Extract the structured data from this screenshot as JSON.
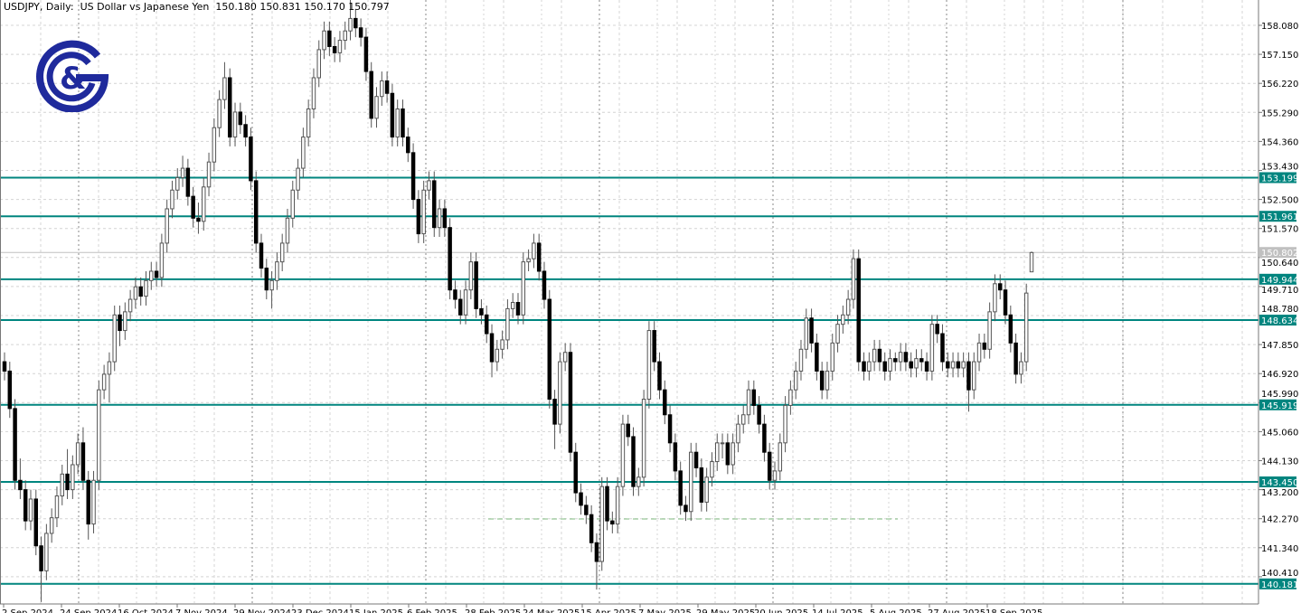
{
  "header": {
    "title": "USDJPY, Daily:  US Dollar vs Japanese Yen  150.180 150.831 150.170 150.797"
  },
  "logo": {
    "text": "G&",
    "color": "#1f2a9c"
  },
  "chart_data": {
    "type": "candlestick",
    "symbol": "USDJPY",
    "timeframe": "Daily",
    "ylim": [
      139.35,
      159.0
    ],
    "grid": true,
    "y_ticks": [
      158.08,
      157.15,
      156.22,
      155.29,
      154.36,
      153.43,
      152.5,
      151.57,
      150.64,
      149.71,
      148.78,
      147.85,
      146.92,
      145.99,
      145.06,
      144.13,
      143.2,
      142.27,
      141.34,
      140.41
    ],
    "x_tick_labels": [
      "2 Sep 2024",
      "24 Sep 2024",
      "16 Oct 2024",
      "7 Nov 2024",
      "29 Nov 2024",
      "23 Dec 2024",
      "15 Jan 2025",
      "6 Feb 2025",
      "28 Feb 2025",
      "24 Mar 2025",
      "15 Apr 2025",
      "7 May 2025",
      "29 May 2025",
      "20 Jun 2025",
      "14 Jul 2025",
      "5 Aug 2025",
      "27 Aug 2025",
      "18 Sep 2025"
    ],
    "levels": [
      153.199,
      151.961,
      149.944,
      148.634,
      145.919,
      143.45,
      140.181
    ],
    "level_labels": [
      "153.199",
      "151.961",
      "149.944",
      "148.634",
      "145.919",
      "143.450",
      "140.181"
    ],
    "current_price": 150.802,
    "current_price_label": "150.802",
    "dashed_support": 142.26,
    "colors": {
      "level": "#00857f",
      "bull_body": "#ffffff",
      "bear_body": "#000000",
      "wick": "#555555",
      "current": "#c0c0c0",
      "dashed": "#7fba7f"
    },
    "candles_ohlc": [
      [
        147.3,
        147.6,
        146.7,
        147.0
      ],
      [
        147.0,
        147.3,
        145.5,
        145.8
      ],
      [
        145.8,
        146.1,
        143.2,
        143.5
      ],
      [
        143.5,
        144.2,
        142.9,
        143.2
      ],
      [
        143.2,
        143.5,
        141.9,
        142.2
      ],
      [
        142.2,
        143.2,
        141.9,
        142.9
      ],
      [
        142.9,
        143.2,
        141.1,
        141.4
      ],
      [
        141.4,
        141.7,
        139.6,
        140.6
      ],
      [
        140.6,
        142.1,
        140.3,
        141.8
      ],
      [
        141.8,
        142.6,
        141.5,
        142.3
      ],
      [
        142.3,
        143.3,
        142.0,
        143.0
      ],
      [
        143.0,
        144.0,
        142.7,
        143.7
      ],
      [
        143.7,
        144.5,
        142.9,
        143.2
      ],
      [
        143.2,
        144.3,
        142.9,
        144.0
      ],
      [
        144.0,
        145.0,
        143.7,
        144.7
      ],
      [
        144.7,
        145.2,
        143.2,
        143.5
      ],
      [
        143.5,
        143.8,
        141.6,
        142.1
      ],
      [
        142.1,
        143.8,
        141.8,
        143.5
      ],
      [
        143.5,
        146.7,
        143.2,
        146.4
      ],
      [
        146.4,
        147.2,
        146.1,
        146.9
      ],
      [
        146.9,
        147.6,
        146.0,
        147.3
      ],
      [
        147.3,
        149.1,
        147.0,
        148.8
      ],
      [
        148.8,
        149.1,
        147.8,
        148.3
      ],
      [
        148.3,
        149.2,
        148.0,
        148.9
      ],
      [
        148.9,
        149.6,
        148.6,
        149.3
      ],
      [
        149.3,
        150.0,
        149.0,
        149.7
      ],
      [
        149.7,
        150.0,
        149.1,
        149.4
      ],
      [
        149.4,
        150.2,
        149.1,
        149.9
      ],
      [
        149.9,
        150.5,
        149.6,
        150.2
      ],
      [
        150.2,
        150.5,
        149.7,
        150.0
      ],
      [
        150.0,
        151.4,
        149.7,
        151.1
      ],
      [
        151.1,
        152.5,
        150.8,
        152.2
      ],
      [
        152.2,
        153.1,
        151.9,
        152.8
      ],
      [
        152.8,
        153.5,
        152.5,
        153.2
      ],
      [
        153.2,
        153.9,
        152.9,
        153.5
      ],
      [
        153.5,
        153.8,
        152.3,
        152.6
      ],
      [
        152.6,
        152.9,
        151.6,
        151.9
      ],
      [
        151.9,
        152.4,
        151.4,
        151.8
      ],
      [
        151.8,
        153.2,
        151.5,
        152.9
      ],
      [
        152.9,
        154.0,
        152.6,
        153.7
      ],
      [
        153.7,
        155.1,
        153.4,
        154.8
      ],
      [
        154.8,
        156.0,
        154.5,
        155.7
      ],
      [
        155.7,
        156.9,
        155.4,
        156.4
      ],
      [
        156.4,
        156.7,
        154.2,
        154.5
      ],
      [
        154.5,
        155.6,
        154.2,
        155.3
      ],
      [
        155.3,
        155.6,
        154.6,
        154.9
      ],
      [
        154.9,
        155.2,
        154.2,
        154.5
      ],
      [
        154.5,
        154.8,
        152.8,
        153.1
      ],
      [
        153.1,
        153.4,
        150.8,
        151.1
      ],
      [
        151.1,
        151.4,
        150.0,
        150.3
      ],
      [
        150.3,
        150.6,
        149.3,
        149.6
      ],
      [
        149.6,
        150.2,
        149.0,
        149.9
      ],
      [
        149.9,
        150.8,
        149.6,
        150.5
      ],
      [
        150.5,
        151.4,
        150.2,
        151.1
      ],
      [
        151.1,
        152.2,
        150.8,
        151.9
      ],
      [
        151.9,
        153.1,
        151.6,
        152.8
      ],
      [
        152.8,
        153.8,
        152.5,
        153.5
      ],
      [
        153.5,
        154.8,
        153.2,
        154.5
      ],
      [
        154.5,
        155.7,
        154.2,
        155.4
      ],
      [
        155.4,
        156.7,
        155.1,
        156.4
      ],
      [
        156.4,
        157.6,
        156.1,
        157.3
      ],
      [
        157.3,
        158.2,
        157.0,
        157.9
      ],
      [
        157.9,
        158.2,
        157.1,
        157.4
      ],
      [
        157.4,
        157.7,
        156.9,
        157.2
      ],
      [
        157.2,
        157.9,
        156.9,
        157.6
      ],
      [
        157.6,
        158.2,
        157.3,
        157.9
      ],
      [
        157.9,
        158.9,
        157.6,
        158.3
      ],
      [
        158.3,
        158.6,
        157.7,
        158.0
      ],
      [
        158.0,
        158.3,
        157.4,
        157.7
      ],
      [
        157.7,
        158.0,
        156.3,
        156.6
      ],
      [
        156.6,
        156.9,
        154.8,
        155.1
      ],
      [
        155.1,
        156.1,
        154.8,
        155.8
      ],
      [
        155.8,
        156.6,
        155.5,
        156.3
      ],
      [
        156.3,
        156.6,
        155.6,
        155.9
      ],
      [
        155.9,
        156.2,
        154.2,
        154.5
      ],
      [
        154.5,
        155.7,
        154.2,
        155.4
      ],
      [
        155.4,
        155.7,
        154.2,
        154.5
      ],
      [
        154.5,
        154.8,
        153.7,
        154.0
      ],
      [
        154.0,
        154.3,
        152.2,
        152.5
      ],
      [
        152.5,
        152.8,
        151.1,
        151.4
      ],
      [
        151.4,
        153.1,
        151.1,
        152.8
      ],
      [
        152.8,
        153.4,
        152.5,
        153.1
      ],
      [
        153.1,
        153.4,
        151.3,
        151.6
      ],
      [
        151.6,
        152.5,
        151.3,
        152.2
      ],
      [
        152.2,
        152.5,
        151.3,
        151.6
      ],
      [
        151.6,
        151.9,
        149.3,
        149.6
      ],
      [
        149.6,
        149.9,
        149.0,
        149.3
      ],
      [
        149.3,
        149.6,
        148.5,
        148.8
      ],
      [
        148.8,
        149.9,
        148.5,
        149.6
      ],
      [
        149.6,
        150.8,
        149.3,
        150.5
      ],
      [
        150.5,
        150.8,
        148.7,
        149.0
      ],
      [
        149.0,
        149.3,
        148.5,
        148.8
      ],
      [
        148.8,
        149.1,
        147.9,
        148.2
      ],
      [
        148.2,
        148.5,
        146.8,
        147.3
      ],
      [
        147.3,
        148.0,
        147.0,
        147.7
      ],
      [
        147.7,
        148.3,
        147.4,
        148.0
      ],
      [
        148.0,
        149.3,
        147.7,
        149.0
      ],
      [
        149.0,
        149.5,
        148.7,
        149.2
      ],
      [
        149.2,
        149.5,
        148.5,
        148.8
      ],
      [
        148.8,
        150.8,
        148.5,
        150.5
      ],
      [
        150.5,
        150.9,
        150.2,
        150.6
      ],
      [
        150.6,
        151.4,
        150.3,
        151.1
      ],
      [
        151.1,
        151.4,
        149.9,
        150.2
      ],
      [
        150.2,
        150.5,
        149.0,
        149.3
      ],
      [
        149.3,
        149.6,
        145.8,
        146.1
      ],
      [
        146.1,
        146.4,
        144.5,
        145.3
      ],
      [
        145.3,
        147.6,
        145.0,
        147.3
      ],
      [
        147.3,
        147.9,
        147.0,
        147.6
      ],
      [
        147.6,
        147.9,
        144.1,
        144.4
      ],
      [
        144.4,
        144.7,
        142.8,
        143.1
      ],
      [
        143.1,
        143.4,
        142.4,
        142.7
      ],
      [
        142.7,
        143.0,
        142.1,
        142.4
      ],
      [
        142.4,
        142.7,
        141.2,
        141.5
      ],
      [
        141.5,
        141.8,
        140.0,
        140.9
      ],
      [
        140.9,
        143.6,
        140.6,
        143.3
      ],
      [
        143.3,
        143.6,
        141.9,
        142.2
      ],
      [
        142.2,
        142.5,
        141.8,
        142.1
      ],
      [
        142.1,
        143.6,
        141.8,
        143.3
      ],
      [
        143.3,
        145.6,
        143.0,
        145.3
      ],
      [
        145.3,
        145.6,
        144.6,
        144.9
      ],
      [
        144.9,
        145.2,
        143.0,
        143.3
      ],
      [
        143.3,
        143.9,
        143.0,
        143.6
      ],
      [
        143.6,
        146.4,
        143.3,
        146.1
      ],
      [
        146.1,
        148.6,
        145.8,
        148.3
      ],
      [
        148.3,
        148.6,
        147.0,
        147.3
      ],
      [
        147.3,
        147.6,
        146.1,
        146.4
      ],
      [
        146.4,
        146.7,
        145.3,
        145.6
      ],
      [
        145.6,
        145.9,
        144.4,
        144.7
      ],
      [
        144.7,
        145.0,
        143.5,
        143.8
      ],
      [
        143.8,
        144.1,
        142.4,
        142.7
      ],
      [
        142.7,
        143.0,
        142.2,
        142.5
      ],
      [
        142.5,
        144.7,
        142.2,
        144.4
      ],
      [
        144.4,
        144.7,
        143.6,
        143.9
      ],
      [
        143.9,
        144.2,
        142.5,
        142.8
      ],
      [
        142.8,
        143.9,
        142.5,
        143.6
      ],
      [
        143.6,
        144.4,
        143.3,
        144.1
      ],
      [
        144.1,
        145.0,
        143.8,
        144.7
      ],
      [
        144.7,
        145.0,
        144.2,
        144.7
      ],
      [
        144.7,
        145.0,
        143.7,
        144.0
      ],
      [
        144.0,
        145.0,
        143.7,
        144.7
      ],
      [
        144.7,
        145.6,
        144.4,
        145.3
      ],
      [
        145.3,
        145.9,
        145.0,
        145.6
      ],
      [
        145.6,
        146.7,
        145.3,
        146.4
      ],
      [
        146.4,
        146.7,
        145.6,
        145.9
      ],
      [
        145.9,
        146.2,
        145.0,
        145.3
      ],
      [
        145.3,
        145.6,
        144.1,
        144.4
      ],
      [
        144.4,
        144.7,
        143.2,
        143.5
      ],
      [
        143.5,
        144.1,
        143.2,
        143.8
      ],
      [
        143.8,
        145.0,
        143.5,
        144.7
      ],
      [
        144.7,
        146.2,
        144.4,
        145.9
      ],
      [
        145.9,
        146.7,
        145.6,
        146.4
      ],
      [
        146.4,
        147.3,
        146.1,
        147.0
      ],
      [
        147.0,
        148.0,
        146.7,
        147.7
      ],
      [
        147.7,
        149.0,
        147.4,
        148.7
      ],
      [
        148.7,
        149.0,
        147.6,
        147.9
      ],
      [
        147.9,
        148.2,
        146.7,
        147.0
      ],
      [
        147.0,
        147.3,
        146.1,
        146.4
      ],
      [
        146.4,
        147.3,
        146.1,
        147.0
      ],
      [
        147.0,
        148.2,
        146.7,
        147.9
      ],
      [
        147.9,
        148.8,
        147.6,
        148.5
      ],
      [
        148.5,
        149.1,
        148.2,
        148.8
      ],
      [
        148.8,
        149.6,
        148.5,
        149.3
      ],
      [
        149.3,
        150.9,
        149.0,
        150.6
      ],
      [
        150.6,
        150.9,
        147.0,
        147.3
      ],
      [
        147.3,
        147.6,
        146.7,
        147.0
      ],
      [
        147.0,
        147.6,
        146.7,
        147.3
      ],
      [
        147.3,
        148.0,
        147.0,
        147.7
      ],
      [
        147.7,
        148.0,
        147.0,
        147.3
      ],
      [
        147.3,
        147.6,
        146.7,
        147.0
      ],
      [
        147.0,
        147.7,
        146.7,
        147.4
      ],
      [
        147.4,
        147.6,
        147.0,
        147.3
      ],
      [
        147.3,
        147.9,
        147.0,
        147.6
      ],
      [
        147.6,
        147.9,
        147.0,
        147.3
      ],
      [
        147.3,
        147.6,
        146.8,
        147.1
      ],
      [
        147.1,
        147.7,
        146.8,
        147.4
      ],
      [
        147.4,
        147.7,
        147.0,
        147.3
      ],
      [
        147.3,
        147.6,
        146.7,
        147.0
      ],
      [
        147.0,
        148.8,
        146.7,
        148.5
      ],
      [
        148.5,
        148.8,
        147.9,
        148.2
      ],
      [
        148.2,
        148.5,
        147.0,
        147.3
      ],
      [
        147.3,
        147.6,
        146.8,
        147.1
      ],
      [
        147.1,
        147.6,
        146.8,
        147.3
      ],
      [
        147.3,
        147.6,
        146.8,
        147.1
      ],
      [
        147.1,
        147.6,
        146.8,
        147.3
      ],
      [
        147.3,
        147.6,
        145.7,
        146.4
      ],
      [
        146.4,
        147.6,
        146.1,
        147.3
      ],
      [
        147.3,
        148.2,
        147.0,
        147.9
      ],
      [
        147.9,
        148.2,
        147.4,
        147.7
      ],
      [
        147.7,
        149.2,
        147.4,
        148.9
      ],
      [
        148.9,
        150.1,
        148.6,
        149.8
      ],
      [
        149.8,
        150.1,
        149.3,
        149.6
      ],
      [
        149.6,
        149.9,
        148.5,
        148.8
      ],
      [
        148.8,
        149.1,
        147.6,
        147.9
      ],
      [
        147.9,
        148.2,
        146.6,
        146.9
      ],
      [
        146.9,
        147.6,
        146.6,
        147.3
      ],
      [
        147.3,
        149.8,
        147.0,
        149.5
      ],
      [
        150.18,
        150.831,
        150.17,
        150.797
      ]
    ]
  }
}
